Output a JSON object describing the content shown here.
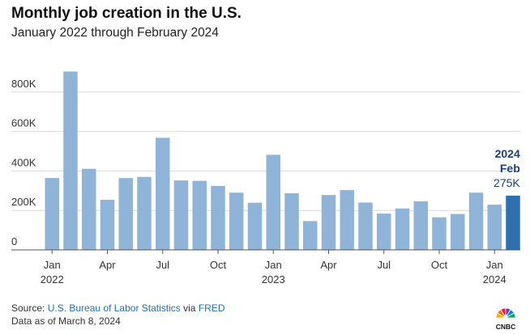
{
  "header": {
    "title": "Monthly job creation in the U.S.",
    "subtitle": "January 2022 through February 2024"
  },
  "chart_data": {
    "type": "bar",
    "title": "Monthly job creation in the U.S.",
    "subtitle": "January 2022 through February 2024",
    "categories": [
      "Jan 2022",
      "Feb 2022",
      "Mar 2022",
      "Apr 2022",
      "May 2022",
      "Jun 2022",
      "Jul 2022",
      "Aug 2022",
      "Sep 2022",
      "Oct 2022",
      "Nov 2022",
      "Dec 2022",
      "Jan 2023",
      "Feb 2023",
      "Mar 2023",
      "Apr 2023",
      "May 2023",
      "Jun 2023",
      "Jul 2023",
      "Aug 2023",
      "Sep 2023",
      "Oct 2023",
      "Nov 2023",
      "Dec 2023",
      "Jan 2024",
      "Feb 2024"
    ],
    "values": [
      364,
      904,
      411,
      254,
      364,
      370,
      568,
      352,
      350,
      324,
      290,
      239,
      482,
      287,
      146,
      278,
      303,
      240,
      184,
      210,
      246,
      165,
      182,
      290,
      229,
      275
    ],
    "ylim": [
      0,
      900
    ],
    "yticks": [
      0,
      200,
      400,
      600,
      800
    ],
    "ytick_labels": [
      "0",
      "200K",
      "400K",
      "600K",
      "800K"
    ],
    "xticks": [
      {
        "index": 0,
        "month": "Jan",
        "year": "2022"
      },
      {
        "index": 3,
        "month": "Apr",
        "year": ""
      },
      {
        "index": 6,
        "month": "Jul",
        "year": ""
      },
      {
        "index": 9,
        "month": "Oct",
        "year": ""
      },
      {
        "index": 12,
        "month": "Jan",
        "year": "2023"
      },
      {
        "index": 15,
        "month": "Apr",
        "year": ""
      },
      {
        "index": 18,
        "month": "Jul",
        "year": ""
      },
      {
        "index": 21,
        "month": "Oct",
        "year": ""
      },
      {
        "index": 24,
        "month": "Jan",
        "year": "2024"
      }
    ],
    "grid": true,
    "annotation": {
      "index": 25,
      "line1": "2024",
      "line2": "Feb",
      "line3": "275K"
    },
    "colors": {
      "bar": "#8fb4d8",
      "highlight": "#2f6fad",
      "annotation": "#1f3f75",
      "grid": "#d9d9d9",
      "axis": "#555555"
    }
  },
  "footer": {
    "source_prefix": "Source: ",
    "source_link1": "U.S. Bureau of Labor Statistics",
    "source_mid": " via ",
    "source_link2": "FRED",
    "data_note": "Data as of March 8, 2024"
  },
  "logo": {
    "icon": "peacock-logo-icon",
    "text": "CNBC",
    "colors": [
      "#f4b400",
      "#ff6a13",
      "#e8174a",
      "#6e3aa8",
      "#0089cf",
      "#00a651"
    ]
  }
}
